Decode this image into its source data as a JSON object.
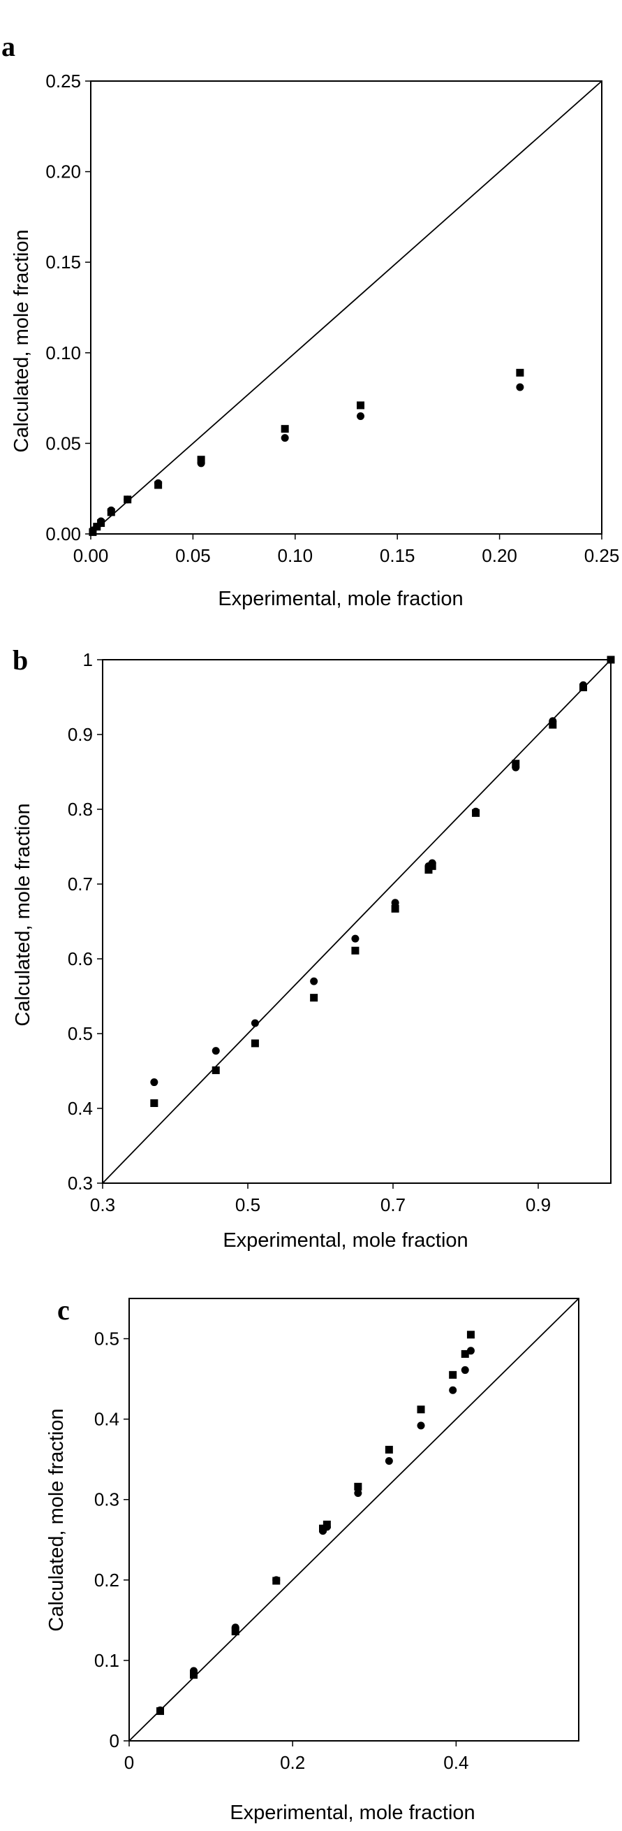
{
  "chart_data": [
    {
      "panel": "a",
      "type": "scatter",
      "xlabel": "Experimental, mole fraction",
      "ylabel": "Calculated, mole fraction",
      "xlim": [
        0,
        0.25
      ],
      "ylim": [
        0,
        0.25
      ],
      "xticks": [
        "0.00",
        "0.05",
        "0.10",
        "0.15",
        "0.20",
        "0.25"
      ],
      "yticks": [
        "0.00",
        "0.05",
        "0.10",
        "0.15",
        "0.20",
        "0.25"
      ],
      "diagonal": true,
      "grid": false,
      "series": [
        {
          "marker": "square",
          "points": [
            [
              0.001,
              0.001
            ],
            [
              0.003,
              0.004
            ],
            [
              0.005,
              0.006
            ],
            [
              0.01,
              0.012
            ],
            [
              0.018,
              0.019
            ],
            [
              0.033,
              0.027
            ],
            [
              0.054,
              0.041
            ],
            [
              0.095,
              0.058
            ],
            [
              0.132,
              0.071
            ],
            [
              0.21,
              0.089
            ]
          ]
        },
        {
          "marker": "circle",
          "points": [
            [
              0.001,
              0.002
            ],
            [
              0.003,
              0.004
            ],
            [
              0.005,
              0.007
            ],
            [
              0.01,
              0.013
            ],
            [
              0.018,
              0.019
            ],
            [
              0.033,
              0.028
            ],
            [
              0.054,
              0.039
            ],
            [
              0.095,
              0.053
            ],
            [
              0.132,
              0.065
            ],
            [
              0.21,
              0.081
            ]
          ]
        }
      ]
    },
    {
      "panel": "b",
      "type": "scatter",
      "xlabel": "Experimental, mole fraction",
      "ylabel": "Calculated, mole fraction",
      "xlim": [
        0.3,
        1.0
      ],
      "ylim": [
        0.3,
        1.0
      ],
      "xticks": [
        "0.3",
        "0.5",
        "0.7",
        "0.9"
      ],
      "yticks": [
        "0.3",
        "0.4",
        "0.5",
        "0.6",
        "0.7",
        "0.8",
        "0.9",
        "1"
      ],
      "diagonal": true,
      "grid": false,
      "series": [
        {
          "marker": "square",
          "points": [
            [
              0.371,
              0.407
            ],
            [
              0.456,
              0.451
            ],
            [
              0.51,
              0.487
            ],
            [
              0.591,
              0.548
            ],
            [
              0.648,
              0.611
            ],
            [
              0.703,
              0.667
            ],
            [
              0.749,
              0.719
            ],
            [
              0.754,
              0.724
            ],
            [
              0.814,
              0.795
            ],
            [
              0.869,
              0.861
            ],
            [
              0.92,
              0.913
            ],
            [
              0.962,
              0.963
            ],
            [
              1.0,
              1.0
            ]
          ]
        },
        {
          "marker": "circle",
          "points": [
            [
              0.371,
              0.435
            ],
            [
              0.456,
              0.477
            ],
            [
              0.51,
              0.514
            ],
            [
              0.591,
              0.57
            ],
            [
              0.648,
              0.627
            ],
            [
              0.703,
              0.675
            ],
            [
              0.749,
              0.724
            ],
            [
              0.754,
              0.728
            ],
            [
              0.814,
              0.797
            ],
            [
              0.869,
              0.856
            ],
            [
              0.92,
              0.918
            ],
            [
              0.962,
              0.966
            ],
            [
              1.0,
              1.0
            ]
          ]
        }
      ]
    },
    {
      "panel": "c",
      "type": "scatter",
      "xlabel": "Experimental, mole fraction",
      "ylabel": "Calculated, mole fraction",
      "xlim": [
        0,
        0.55
      ],
      "ylim": [
        0,
        0.55
      ],
      "xticks": [
        "0",
        "0.2",
        "0.4"
      ],
      "yticks": [
        "0",
        "0.1",
        "0.2",
        "0.3",
        "0.4",
        "0.5"
      ],
      "diagonal": true,
      "grid": false,
      "series": [
        {
          "marker": "square",
          "points": [
            [
              0.038,
              0.037
            ],
            [
              0.079,
              0.082
            ],
            [
              0.13,
              0.136
            ],
            [
              0.18,
              0.199
            ],
            [
              0.237,
              0.264
            ],
            [
              0.242,
              0.269
            ],
            [
              0.28,
              0.316
            ],
            [
              0.318,
              0.362
            ],
            [
              0.357,
              0.412
            ],
            [
              0.396,
              0.455
            ],
            [
              0.411,
              0.481
            ],
            [
              0.418,
              0.505
            ]
          ]
        },
        {
          "marker": "circle",
          "points": [
            [
              0.038,
              0.038
            ],
            [
              0.079,
              0.087
            ],
            [
              0.13,
              0.141
            ],
            [
              0.18,
              0.2
            ],
            [
              0.237,
              0.261
            ],
            [
              0.242,
              0.266
            ],
            [
              0.28,
              0.308
            ],
            [
              0.318,
              0.348
            ],
            [
              0.357,
              0.392
            ],
            [
              0.396,
              0.436
            ],
            [
              0.411,
              0.461
            ],
            [
              0.418,
              0.485
            ]
          ]
        }
      ]
    }
  ]
}
